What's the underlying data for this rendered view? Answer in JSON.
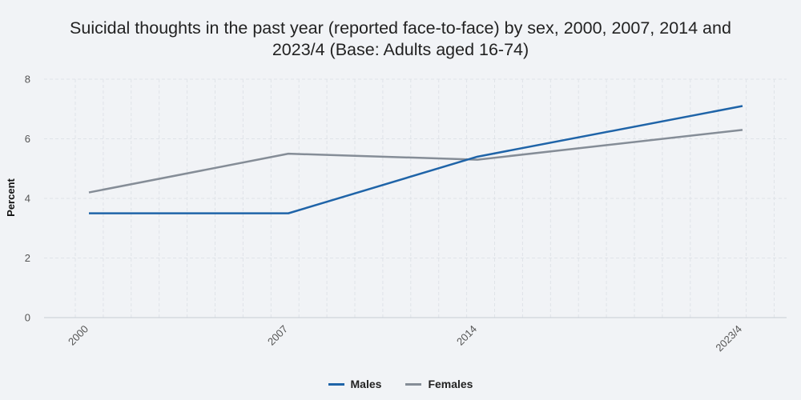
{
  "chart_data": {
    "type": "line",
    "title": "Suicidal thoughts in the past year (reported face-to-face) by sex, 2000, 2007, 2014 and 2023/4 (Base: Adults aged 16-74)",
    "title_line1": "Suicidal thoughts in the past year (reported face-to-face) by sex, 2000, 2007, 2014 and",
    "title_line2": "2023/4 (Base: Adults aged 16-74)",
    "categories": [
      "2000",
      "2007",
      "2014",
      "2023/4"
    ],
    "series": [
      {
        "name": "Males",
        "values": [
          3.5,
          3.5,
          5.4,
          7.1
        ],
        "color": "#1f64a8"
      },
      {
        "name": "Females",
        "values": [
          4.2,
          5.5,
          5.3,
          6.3
        ],
        "color": "#858d97"
      }
    ],
    "xlabel": "",
    "ylabel": "Percent",
    "ylim": [
      0,
      8
    ],
    "yticks": [
      "0",
      "2",
      "4",
      "6",
      "8"
    ],
    "grid": true,
    "legend_position": "bottom"
  }
}
